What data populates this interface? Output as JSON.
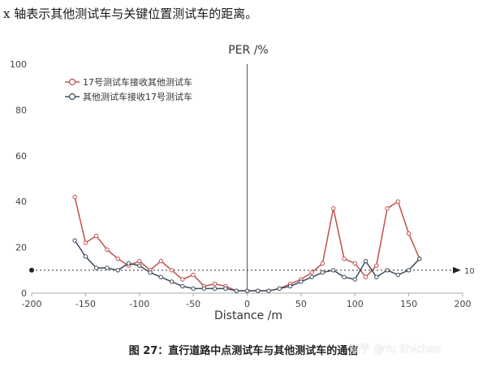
{
  "intro_text": "x 轴表示其他测试车与关键位置测试车的距离。",
  "caption": "图 27：直行道路中点测试车与其他测试车的通信",
  "watermark": "知乎 @Yu Shichao",
  "chart_data": {
    "type": "line",
    "title": "PER /%",
    "xlabel": "Distance /m",
    "ylabel": "",
    "xlim": [
      -200,
      200
    ],
    "ylim": [
      0,
      100
    ],
    "xticks": [
      -200,
      -150,
      -100,
      -50,
      0,
      50,
      100,
      150,
      200
    ],
    "yticks": [
      0,
      20,
      40,
      60,
      80,
      100
    ],
    "legend_position": "top-left",
    "reference_line": {
      "y": 10,
      "label": "10"
    },
    "series": [
      {
        "name": "17号测试车接收其他测试车",
        "color": "#c0504d",
        "x": [
          -160,
          -150,
          -140,
          -130,
          -120,
          -110,
          -100,
          -90,
          -80,
          -70,
          -60,
          -50,
          -40,
          -30,
          -20,
          -10,
          0,
          10,
          20,
          30,
          40,
          50,
          60,
          70,
          80,
          90,
          100,
          110,
          120,
          130,
          140,
          150,
          160
        ],
        "values": [
          42,
          22,
          25,
          19,
          15,
          12,
          14,
          10,
          14,
          10,
          6,
          8,
          3,
          4,
          3,
          1,
          1,
          1,
          1,
          2,
          4,
          6,
          9,
          13,
          37,
          15,
          13,
          7,
          12,
          37,
          40,
          26,
          15
        ]
      },
      {
        "name": "其他测试车接收17号测试车",
        "color": "#3a4a5a",
        "x": [
          -160,
          -150,
          -140,
          -130,
          -120,
          -110,
          -100,
          -90,
          -80,
          -70,
          -60,
          -50,
          -40,
          -30,
          -20,
          -10,
          0,
          10,
          20,
          30,
          40,
          50,
          60,
          70,
          80,
          90,
          100,
          110,
          120,
          130,
          140,
          150,
          160
        ],
        "values": [
          23,
          16,
          11,
          11,
          10,
          13,
          12,
          9,
          7,
          5,
          3,
          2,
          2,
          2,
          2,
          1,
          1,
          1,
          1,
          2,
          3,
          5,
          7,
          9,
          10,
          7,
          6,
          14,
          7,
          10,
          8,
          10,
          15
        ]
      }
    ]
  }
}
